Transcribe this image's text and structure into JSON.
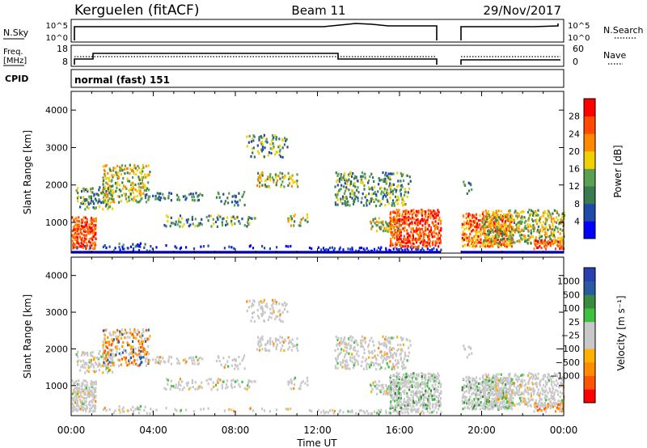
{
  "header": {
    "station": "Kerguelen (fitACF)",
    "beam": "Beam 11",
    "date": "29/Nov/2017"
  },
  "strips": {
    "nsky_label": "N.Sky",
    "nsky_ticks": [
      "10^5",
      "10^0"
    ],
    "nsearch_label": "N.Search",
    "nsearch_ticks": [
      "10^5",
      "10^0"
    ],
    "freq_label_1": "Freq.",
    "freq_label_2": "[MHz]",
    "freq_ticks": [
      "18",
      "8"
    ],
    "nave_label": "Nave",
    "nave_ticks": [
      "60",
      "0"
    ],
    "cpid_label": "CPID",
    "cpid_value": "normal (fast) 151"
  },
  "colors": {
    "power": [
      "#0000ff",
      "#204aa8",
      "#3a7a50",
      "#5aa050",
      "#f0d000",
      "#ff8a00",
      "#ff4a00",
      "#ff0000"
    ],
    "velocity": [
      "#ff0000",
      "#ff5500",
      "#ff8c00",
      "#ffb000",
      "#c8c8c8",
      "#c8c8c8",
      "#40c040",
      "#3a8a40",
      "#2a5aa0",
      "#2a40b0"
    ]
  },
  "chart_data": [
    {
      "type": "heatmap",
      "panel": "power",
      "xlabel": "",
      "ylabel": "Slant Range [km]",
      "x_ticks": [
        "00:00",
        "04:00",
        "08:00",
        "12:00",
        "16:00",
        "20:00",
        "00:00"
      ],
      "x_range": [
        0,
        24
      ],
      "y_ticks": [
        1000,
        2000,
        3000,
        4000
      ],
      "ylim": [
        180,
        4500
      ],
      "colorbar": {
        "label": "Power [dB]",
        "ticks": [
          4,
          8,
          12,
          16,
          20,
          24,
          28
        ],
        "range": [
          0,
          32
        ]
      },
      "data_gap_hours": [
        18.0,
        19.0
      ]
    },
    {
      "type": "heatmap",
      "panel": "velocity",
      "xlabel": "Time UT",
      "ylabel": "Slant Range [km]",
      "x_ticks": [
        "00:00",
        "04:00",
        "08:00",
        "12:00",
        "16:00",
        "20:00",
        "00:00"
      ],
      "x_range": [
        0,
        24
      ],
      "y_ticks": [
        1000,
        2000,
        3000,
        4000
      ],
      "ylim": [
        180,
        4500
      ],
      "colorbar": {
        "label": "Velocity [m s⁻¹]",
        "ticks": [
          "1000",
          "500",
          "100",
          "25",
          "−25",
          "−100",
          "−500",
          "−1000"
        ]
      },
      "data_gap_hours": [
        18.0,
        19.0
      ]
    }
  ]
}
